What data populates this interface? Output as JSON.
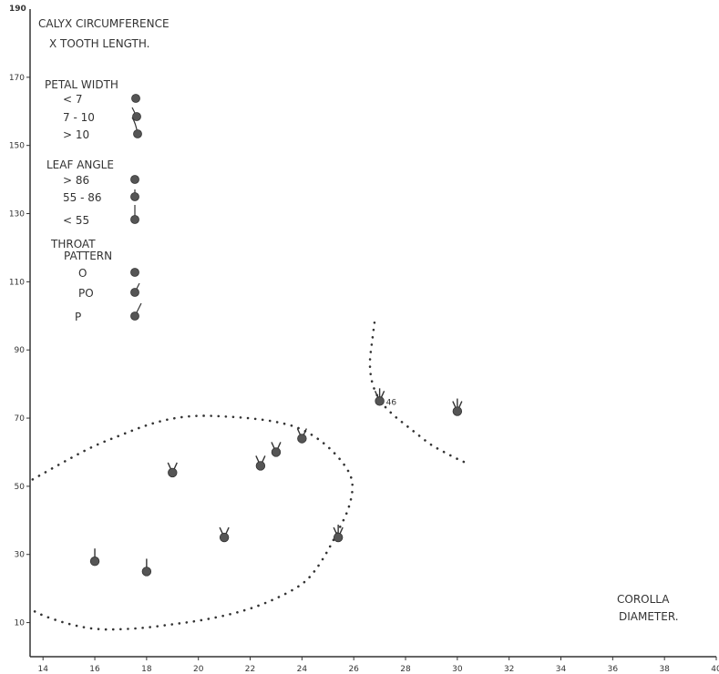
{
  "chart_data": {
    "type": "scatter",
    "title_lines": [
      "CALYX CIRCUMFERENCE",
      "X TOOTH LENGTH."
    ],
    "xlabel_lines": [
      "COROLLA",
      "DIAMETER."
    ],
    "xlim": [
      13.5,
      40
    ],
    "ylim": [
      0,
      190
    ],
    "x_ticks": [
      14,
      16,
      18,
      20,
      22,
      24,
      26,
      28,
      30,
      32,
      34,
      36,
      38,
      40
    ],
    "y_ticks": [
      10,
      30,
      50,
      70,
      90,
      110,
      130,
      150,
      170
    ],
    "y_top_label": "190",
    "grid": false,
    "legend": {
      "placement": "top-left",
      "groups": [
        {
          "title": "PETAL WIDTH",
          "items": [
            {
              "label": "< 7",
              "glyph": "none"
            },
            {
              "label": "7 - 10",
              "glyph": "petal-mid"
            },
            {
              "label": "> 10",
              "glyph": "petal-long"
            }
          ]
        },
        {
          "title": "LEAF ANGLE",
          "items": [
            {
              "label": "> 86",
              "glyph": "none"
            },
            {
              "label": "55 - 86",
              "glyph": "leaf-short"
            },
            {
              "label": "< 55",
              "glyph": "leaf-long"
            }
          ]
        },
        {
          "title": "THROAT PATTERN",
          "title_lines": [
            "THROAT",
            "PATTERN"
          ],
          "items": [
            {
              "label": "O",
              "glyph": "none"
            },
            {
              "label": "PO",
              "glyph": "throat-short"
            },
            {
              "label": "P",
              "glyph": "throat-long"
            }
          ]
        }
      ]
    },
    "points": [
      {
        "x": 16.0,
        "y": 28,
        "label": "",
        "rays": [
          "up"
        ]
      },
      {
        "x": 18.0,
        "y": 25,
        "label": "",
        "rays": [
          "up"
        ]
      },
      {
        "x": 19.0,
        "y": 54,
        "label": "",
        "rays": [
          "ul",
          "ur"
        ]
      },
      {
        "x": 21.0,
        "y": 35,
        "label": "",
        "rays": [
          "ul",
          "ur"
        ]
      },
      {
        "x": 22.4,
        "y": 56,
        "label": "",
        "rays": [
          "ul",
          "ur"
        ]
      },
      {
        "x": 23.0,
        "y": 60,
        "label": "",
        "rays": [
          "ul",
          "ur"
        ]
      },
      {
        "x": 24.0,
        "y": 64,
        "label": "",
        "rays": [
          "ul",
          "ur"
        ]
      },
      {
        "x": 25.4,
        "y": 35,
        "label": "",
        "rays": [
          "ul",
          "ur",
          "up"
        ]
      },
      {
        "x": 27.0,
        "y": 75,
        "label": "46",
        "rays": [
          "ul",
          "ur",
          "up"
        ]
      },
      {
        "x": 30.0,
        "y": 72,
        "label": "",
        "rays": [
          "ul",
          "ur",
          "up"
        ]
      }
    ],
    "enclosures": [
      {
        "name": "lower-cluster",
        "path": [
          [
            13.6,
            52
          ],
          [
            15,
            58
          ],
          [
            16,
            62
          ],
          [
            17,
            65
          ],
          [
            18,
            68
          ],
          [
            19,
            70
          ],
          [
            20,
            70.8
          ],
          [
            21,
            70.5
          ],
          [
            22,
            70
          ],
          [
            23,
            69
          ],
          [
            24,
            67
          ],
          [
            25,
            62
          ],
          [
            25.8,
            55
          ],
          [
            26,
            50
          ],
          [
            25.8,
            43
          ],
          [
            25.4,
            37
          ],
          [
            25,
            31
          ],
          [
            24.5,
            25
          ],
          [
            24,
            21
          ],
          [
            23,
            17
          ],
          [
            22,
            14
          ],
          [
            21,
            12
          ],
          [
            20,
            10.5
          ],
          [
            19,
            9.5
          ],
          [
            18,
            8.5
          ],
          [
            17,
            8
          ],
          [
            16,
            8
          ],
          [
            15,
            9.5
          ],
          [
            14,
            12
          ],
          [
            13.5,
            14
          ]
        ]
      },
      {
        "name": "upper-cluster",
        "path": [
          [
            26.8,
            98
          ],
          [
            26.7,
            92
          ],
          [
            26.6,
            86
          ],
          [
            26.7,
            80
          ],
          [
            27,
            75
          ],
          [
            27.5,
            71
          ],
          [
            28,
            68
          ],
          [
            28.5,
            65
          ],
          [
            29,
            62
          ],
          [
            29.5,
            60
          ],
          [
            30,
            58
          ],
          [
            30.3,
            57
          ]
        ]
      }
    ]
  }
}
